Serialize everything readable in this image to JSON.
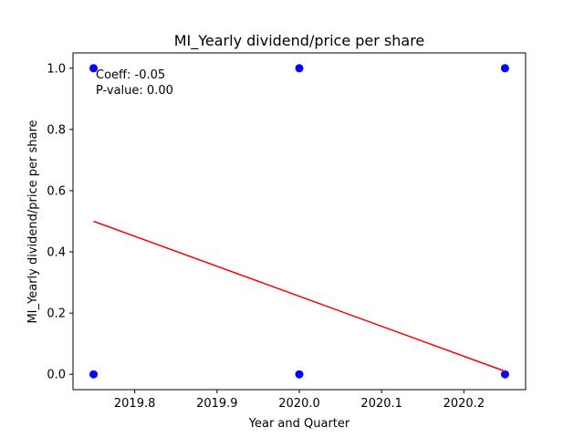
{
  "chart_data": {
    "type": "scatter",
    "title": "MI_Yearly dividend/price per share",
    "xlabel": "Year and Quarter",
    "ylabel": "MI_Yearly dividend/price per share",
    "xlim": [
      2019.725,
      2020.275
    ],
    "ylim": [
      -0.05,
      1.05
    ],
    "xticks": [
      2019.8,
      2019.9,
      2020.0,
      2020.1,
      2020.2
    ],
    "xtick_labels": [
      "2019.8",
      "2019.9",
      "2020.0",
      "2020.1",
      "2020.2"
    ],
    "yticks": [
      0.0,
      0.2,
      0.4,
      0.6,
      0.8,
      1.0
    ],
    "ytick_labels": [
      "0.0",
      "0.2",
      "0.4",
      "0.6",
      "0.8",
      "1.0"
    ],
    "grid": false,
    "series": [
      {
        "type": "scatter",
        "color": "#0000ff",
        "points": [
          {
            "x": 2019.75,
            "y": 1.0
          },
          {
            "x": 2019.75,
            "y": 0.0
          },
          {
            "x": 2020.0,
            "y": 1.0
          },
          {
            "x": 2020.0,
            "y": 0.0
          },
          {
            "x": 2020.25,
            "y": 1.0
          },
          {
            "x": 2020.25,
            "y": 0.0
          }
        ]
      },
      {
        "type": "line",
        "color": "#ff0000",
        "points": [
          {
            "x": 2019.75,
            "y": 0.5
          },
          {
            "x": 2020.25,
            "y": 0.01
          }
        ]
      }
    ],
    "annotation": {
      "coeff": "Coeff: -0.05",
      "pvalue": "P-value: 0.00"
    }
  }
}
